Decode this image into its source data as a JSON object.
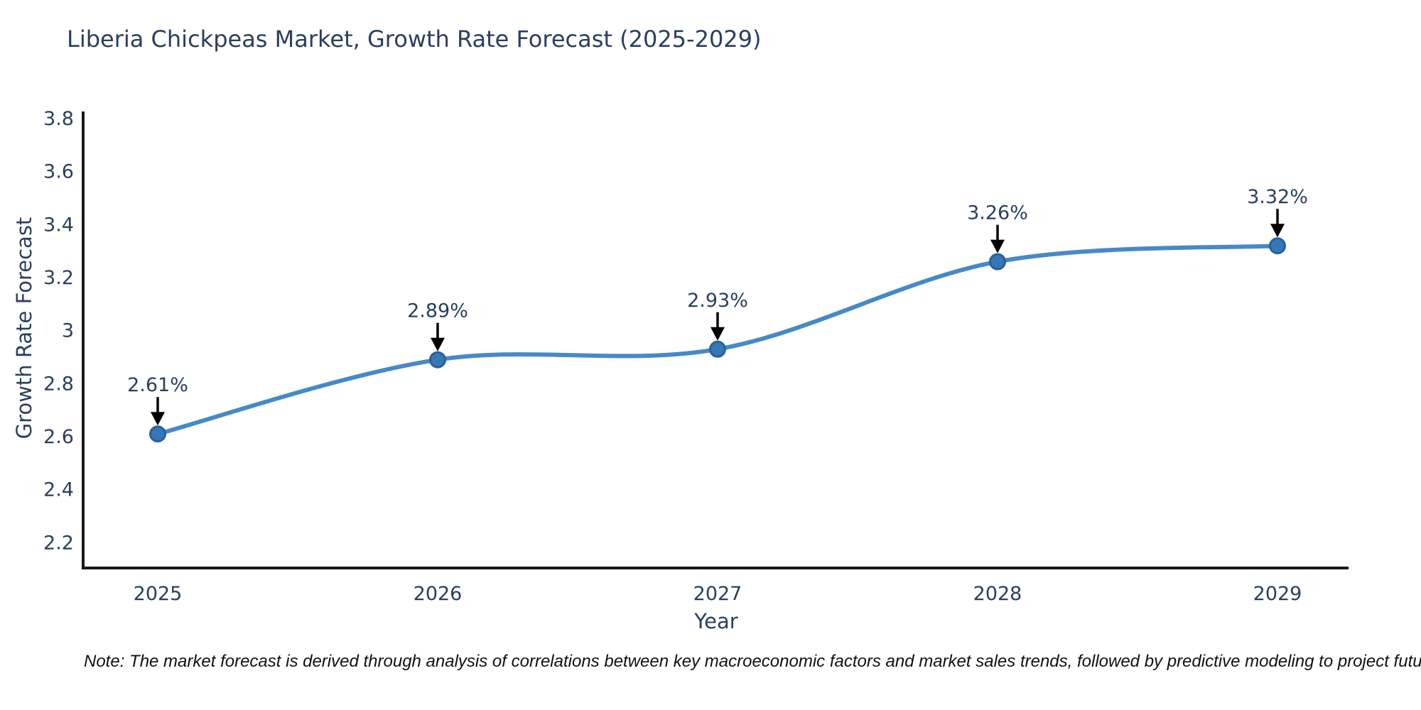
{
  "chart": {
    "title": "Liberia Chickpeas Market, Growth Rate Forecast (2025-2029)",
    "xlabel": "Year",
    "ylabel": "Growth Rate Forecast",
    "note": "Note: The market forecast is derived through analysis of correlations between key macroeconomic factors and market sales trends, followed by predictive modeling to project future sales"
  },
  "chart_data": {
    "type": "line",
    "title": "Liberia Chickpeas Market, Growth Rate Forecast (2025-2029)",
    "categories": [
      "2025",
      "2026",
      "2027",
      "2028",
      "2029"
    ],
    "values": [
      2.61,
      2.89,
      2.93,
      3.26,
      3.32
    ],
    "point_labels": [
      "2.61%",
      "2.89%",
      "2.93%",
      "3.26%",
      "3.32%"
    ],
    "xlabel": "Year",
    "ylabel": "Growth Rate Forecast",
    "ylim": [
      2.1,
      3.84
    ],
    "y_ticks": [
      2.2,
      2.4,
      2.6,
      2.8,
      3,
      3.2,
      3.4,
      3.6,
      3.8
    ],
    "grid": false,
    "legend": "none",
    "line_shape": "spline",
    "annotation_style": "down-arrow",
    "colors": {
      "line": "#4689c8",
      "marker_fill": "#3677b6",
      "marker_stroke": "#28609c",
      "axis": "#1a1a1a",
      "text": "#2a3f5f",
      "annotation_arrow": "#000000",
      "note_text": "#111111",
      "background": "#ffffff"
    }
  }
}
